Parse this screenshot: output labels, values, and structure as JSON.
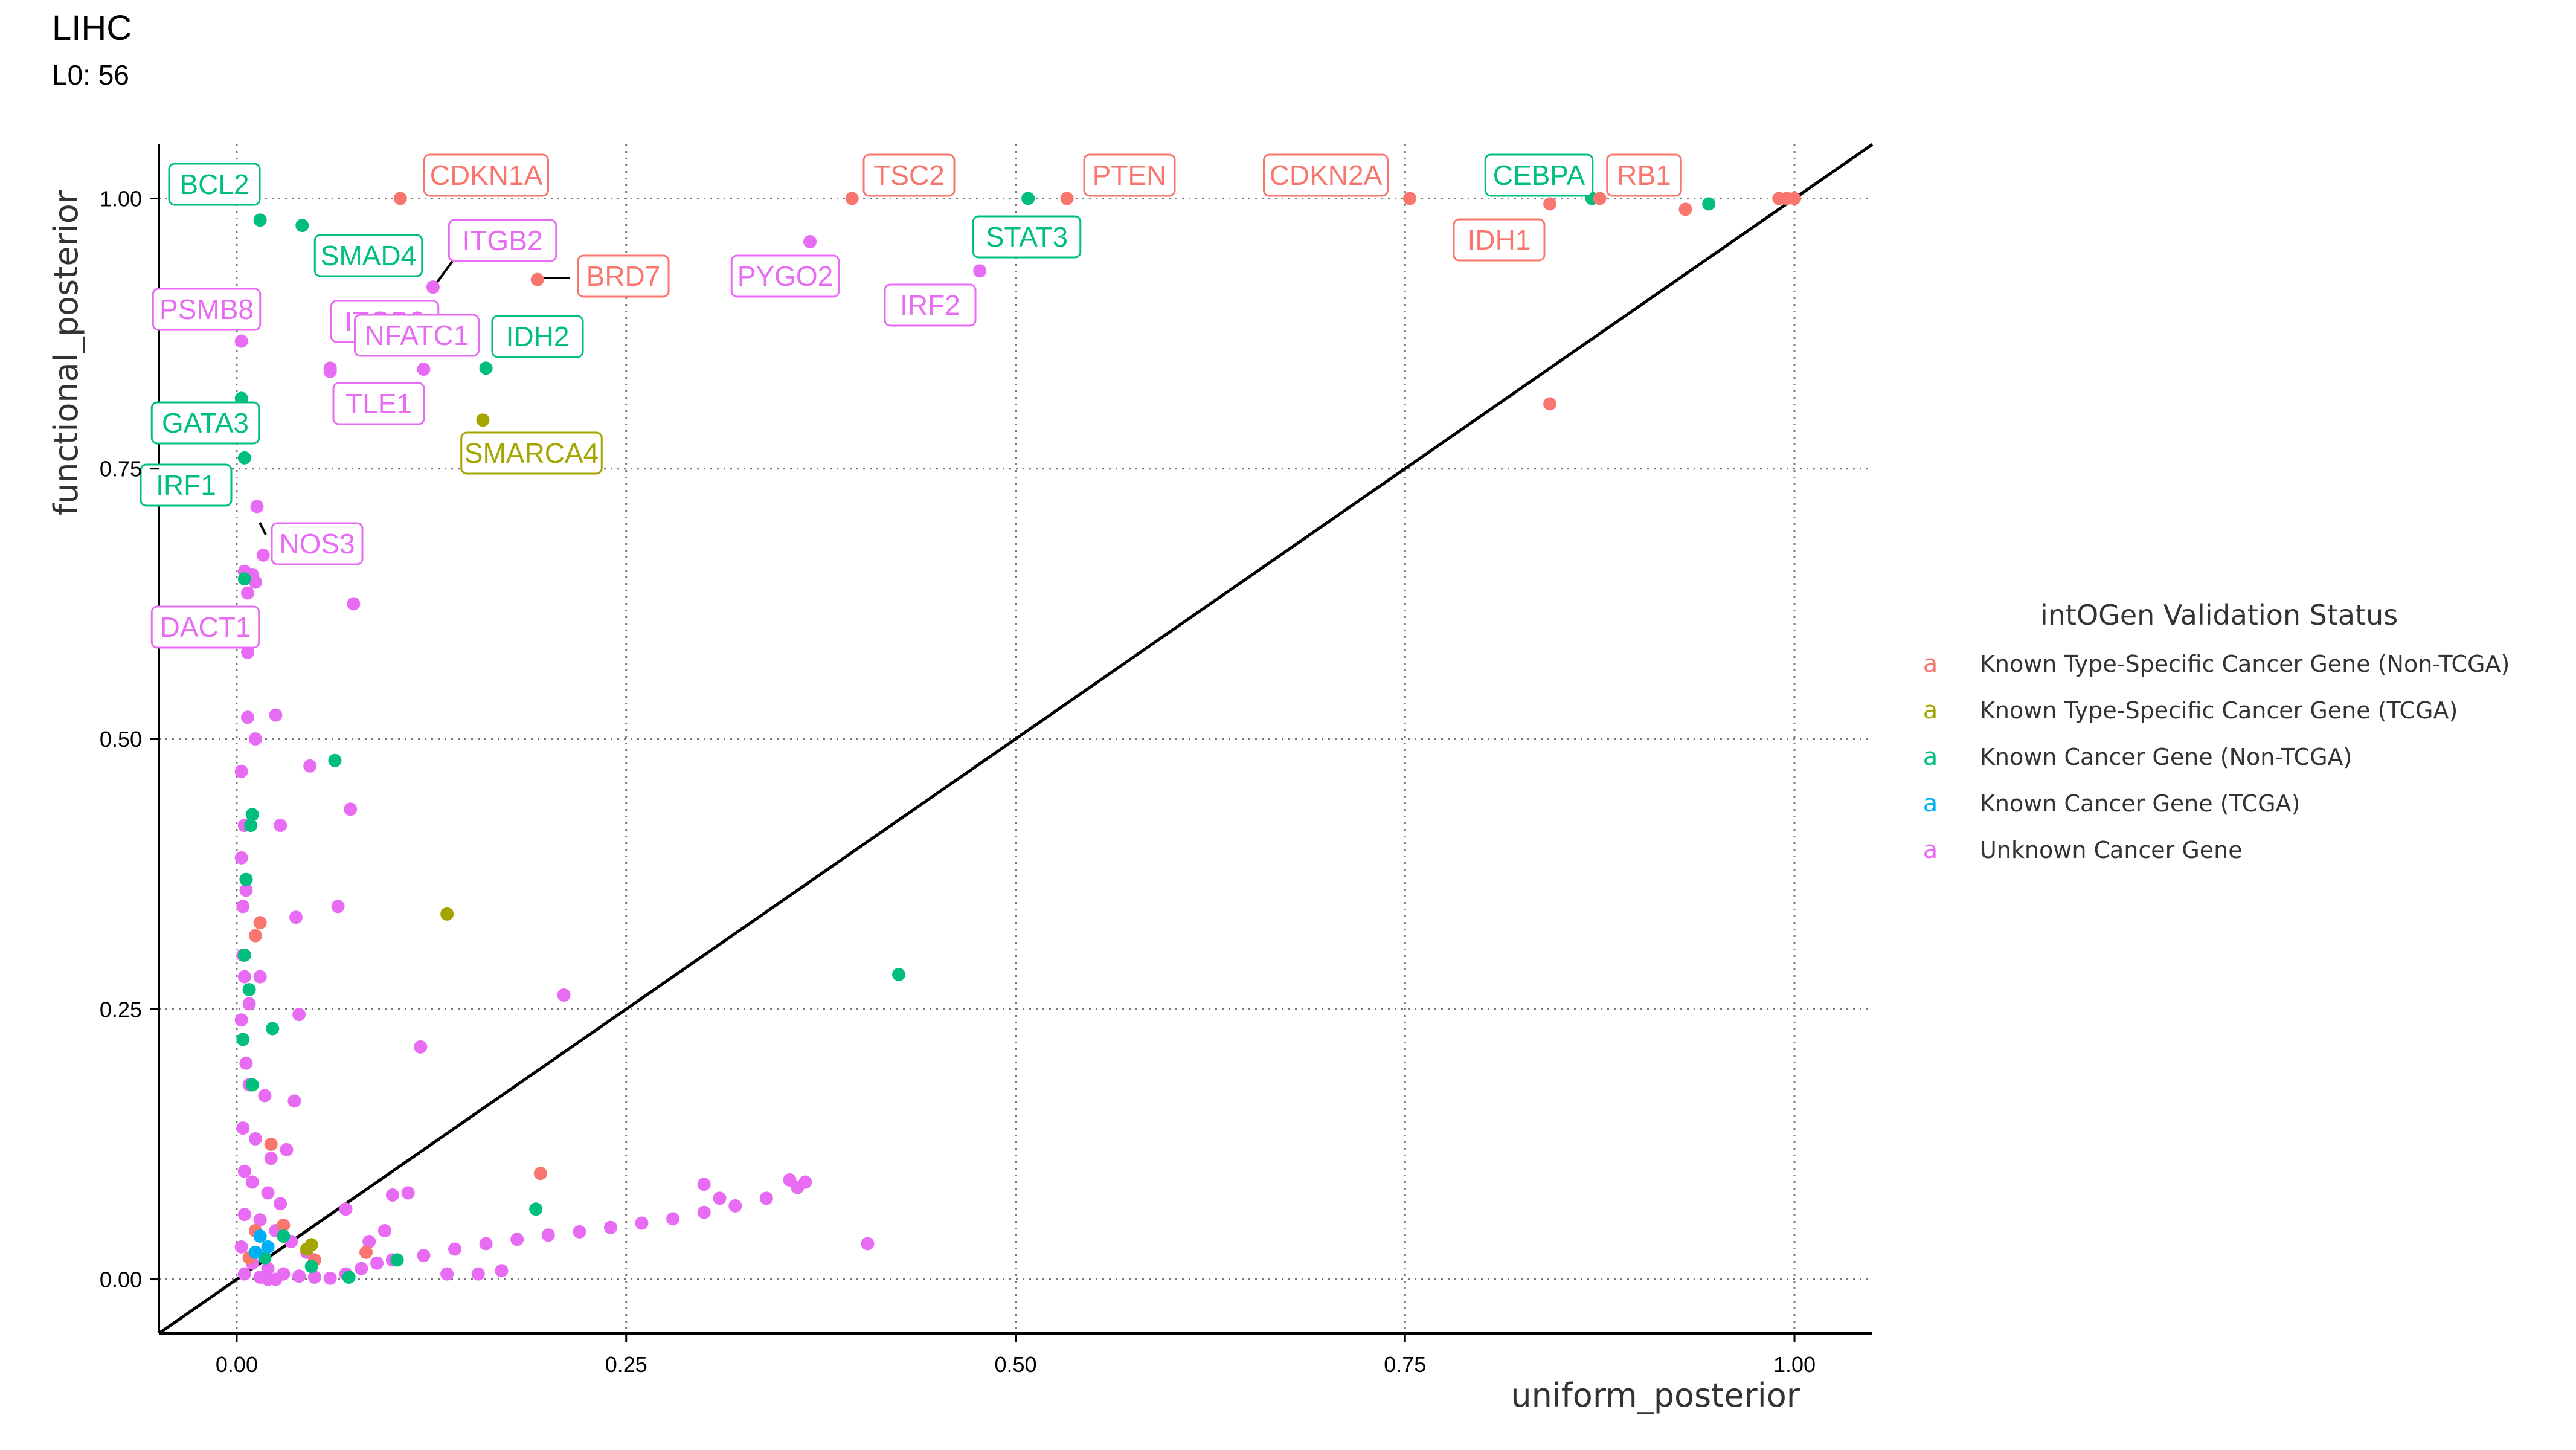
{
  "chart_data": {
    "type": "scatter",
    "title": "LIHC",
    "subtitle": "L0: 56",
    "xlabel": "uniform_posterior",
    "ylabel": "functional_posterior",
    "xlim": [
      -0.05,
      1.05
    ],
    "ylim": [
      -0.05,
      1.05
    ],
    "x_ticks": [
      "0.00",
      "0.25",
      "0.50",
      "0.75",
      "1.00"
    ],
    "y_ticks": [
      "0.00",
      "0.25",
      "0.50",
      "0.75",
      "1.00"
    ],
    "grid": true,
    "reference_line": "y = x",
    "legend": {
      "title": "intOGen Validation Status",
      "key_glyph": "a",
      "placement": "right",
      "entries": [
        {
          "label": "Known Type-Specific Cancer Gene (Non-TCGA)",
          "color": "#F8766D"
        },
        {
          "label": "Known Type-Specific Cancer Gene (TCGA)",
          "color": "#A3A500"
        },
        {
          "label": "Known Cancer Gene (Non-TCGA)",
          "color": "#00BF7D"
        },
        {
          "label": "Known Cancer Gene (TCGA)",
          "color": "#00B0F6"
        },
        {
          "label": "Unknown Cancer Gene",
          "color": "#E76BF3"
        }
      ]
    },
    "labeled_points": [
      {
        "gene": "BCL2",
        "x": 0.015,
        "y": 0.98,
        "status": 2
      },
      {
        "gene": "CDKN1A",
        "x": 0.105,
        "y": 1.0,
        "status": 0
      },
      {
        "gene": "TSC2",
        "x": 0.395,
        "y": 1.0,
        "status": 0
      },
      {
        "gene": "PTEN",
        "x": 0.533,
        "y": 1.0,
        "status": 0
      },
      {
        "gene": "CDKN2A",
        "x": 0.753,
        "y": 1.0,
        "status": 0
      },
      {
        "gene": "CEBPA",
        "x": 0.87,
        "y": 1.0,
        "status": 2
      },
      {
        "gene": "RB1",
        "x": 0.875,
        "y": 1.0,
        "status": 0
      },
      {
        "gene": "IDH1",
        "x": 0.843,
        "y": 0.995,
        "status": 0
      },
      {
        "gene": "SMAD4",
        "x": 0.042,
        "y": 0.975,
        "status": 2
      },
      {
        "gene": "ITGB2",
        "x": 0.126,
        "y": 0.918,
        "status": 4
      },
      {
        "gene": "BRD7",
        "x": 0.193,
        "y": 0.925,
        "status": 0
      },
      {
        "gene": "PYGO2",
        "x": 0.368,
        "y": 0.96,
        "status": 4
      },
      {
        "gene": "STAT3",
        "x": 0.508,
        "y": 1.0,
        "status": 2
      },
      {
        "gene": "IRF2",
        "x": 0.477,
        "y": 0.933,
        "status": 4
      },
      {
        "gene": "PSMB8",
        "x": 0.003,
        "y": 0.868,
        "status": 4
      },
      {
        "gene": "ITGB2",
        "x": 0.06,
        "y": 0.843,
        "status": 4
      },
      {
        "gene": "NFATC1",
        "x": 0.12,
        "y": 0.842,
        "status": 4
      },
      {
        "gene": "IDH2",
        "x": 0.16,
        "y": 0.843,
        "status": 2
      },
      {
        "gene": "TLE1",
        "x": 0.06,
        "y": 0.84,
        "status": 4
      },
      {
        "gene": "SMARCA4",
        "x": 0.158,
        "y": 0.795,
        "status": 1
      },
      {
        "gene": "GATA3",
        "x": 0.003,
        "y": 0.815,
        "status": 2
      },
      {
        "gene": "IRF1",
        "x": 0.005,
        "y": 0.76,
        "status": 2
      },
      {
        "gene": "NOS3",
        "x": 0.013,
        "y": 0.715,
        "status": 4
      },
      {
        "gene": "DACT1",
        "x": 0.005,
        "y": 0.655,
        "status": 4
      }
    ],
    "points": [
      [
        0.99,
        1.0,
        0
      ],
      [
        0.995,
        1.0,
        0
      ],
      [
        1.0,
        1.0,
        0
      ],
      [
        0.93,
        0.99,
        0
      ],
      [
        0.843,
        0.81,
        0
      ],
      [
        0.195,
        0.098,
        0
      ],
      [
        0.015,
        0.33,
        0
      ],
      [
        0.012,
        0.318,
        0
      ],
      [
        0.022,
        0.125,
        0
      ],
      [
        0.03,
        0.05,
        0
      ],
      [
        0.012,
        0.045,
        0
      ],
      [
        0.083,
        0.025,
        0
      ],
      [
        0.05,
        0.018,
        0
      ],
      [
        0.008,
        0.02,
        0
      ],
      [
        0.135,
        0.338,
        1
      ],
      [
        0.048,
        0.032,
        1
      ],
      [
        0.045,
        0.028,
        1
      ],
      [
        0.945,
        0.995,
        2
      ],
      [
        0.425,
        0.282,
        2
      ],
      [
        0.063,
        0.48,
        2
      ],
      [
        0.192,
        0.065,
        2
      ],
      [
        0.023,
        0.232,
        2
      ],
      [
        0.01,
        0.18,
        2
      ],
      [
        0.005,
        0.3,
        2
      ],
      [
        0.008,
        0.268,
        2
      ],
      [
        0.004,
        0.222,
        2
      ],
      [
        0.009,
        0.42,
        2
      ],
      [
        0.01,
        0.43,
        2
      ],
      [
        0.006,
        0.37,
        2
      ],
      [
        0.005,
        0.648,
        2
      ],
      [
        0.103,
        0.018,
        2
      ],
      [
        0.072,
        0.002,
        2
      ],
      [
        0.048,
        0.012,
        2
      ],
      [
        0.018,
        0.02,
        2
      ],
      [
        0.03,
        0.04,
        2
      ],
      [
        0.015,
        0.04,
        3
      ],
      [
        0.02,
        0.03,
        3
      ],
      [
        0.012,
        0.025,
        3
      ],
      [
        0.017,
        0.67,
        4
      ],
      [
        0.01,
        0.652,
        4
      ],
      [
        0.012,
        0.645,
        4
      ],
      [
        0.007,
        0.635,
        4
      ],
      [
        0.075,
        0.625,
        4
      ],
      [
        0.007,
        0.58,
        4
      ],
      [
        0.025,
        0.522,
        4
      ],
      [
        0.007,
        0.52,
        4
      ],
      [
        0.012,
        0.5,
        4
      ],
      [
        0.047,
        0.475,
        4
      ],
      [
        0.003,
        0.47,
        4
      ],
      [
        0.073,
        0.435,
        4
      ],
      [
        0.005,
        0.42,
        4
      ],
      [
        0.028,
        0.42,
        4
      ],
      [
        0.003,
        0.39,
        4
      ],
      [
        0.006,
        0.36,
        4
      ],
      [
        0.004,
        0.345,
        4
      ],
      [
        0.038,
        0.335,
        4
      ],
      [
        0.065,
        0.345,
        4
      ],
      [
        0.004,
        0.3,
        4
      ],
      [
        0.005,
        0.28,
        4
      ],
      [
        0.015,
        0.28,
        4
      ],
      [
        0.008,
        0.255,
        4
      ],
      [
        0.003,
        0.24,
        4
      ],
      [
        0.04,
        0.245,
        4
      ],
      [
        0.006,
        0.2,
        4
      ],
      [
        0.118,
        0.215,
        4
      ],
      [
        0.21,
        0.263,
        4
      ],
      [
        0.008,
        0.18,
        4
      ],
      [
        0.018,
        0.17,
        4
      ],
      [
        0.037,
        0.165,
        4
      ],
      [
        0.004,
        0.14,
        4
      ],
      [
        0.012,
        0.13,
        4
      ],
      [
        0.022,
        0.112,
        4
      ],
      [
        0.032,
        0.12,
        4
      ],
      [
        0.005,
        0.1,
        4
      ],
      [
        0.01,
        0.09,
        4
      ],
      [
        0.02,
        0.08,
        4
      ],
      [
        0.028,
        0.07,
        4
      ],
      [
        0.005,
        0.06,
        4
      ],
      [
        0.015,
        0.055,
        4
      ],
      [
        0.025,
        0.045,
        4
      ],
      [
        0.035,
        0.035,
        4
      ],
      [
        0.045,
        0.025,
        4
      ],
      [
        0.003,
        0.03,
        4
      ],
      [
        0.01,
        0.015,
        4
      ],
      [
        0.02,
        0.01,
        4
      ],
      [
        0.03,
        0.005,
        4
      ],
      [
        0.04,
        0.003,
        4
      ],
      [
        0.05,
        0.002,
        4
      ],
      [
        0.06,
        0.001,
        4
      ],
      [
        0.07,
        0.005,
        4
      ],
      [
        0.08,
        0.01,
        4
      ],
      [
        0.09,
        0.015,
        4
      ],
      [
        0.1,
        0.018,
        4
      ],
      [
        0.12,
        0.022,
        4
      ],
      [
        0.14,
        0.028,
        4
      ],
      [
        0.16,
        0.033,
        4
      ],
      [
        0.18,
        0.037,
        4
      ],
      [
        0.2,
        0.041,
        4
      ],
      [
        0.22,
        0.044,
        4
      ],
      [
        0.24,
        0.048,
        4
      ],
      [
        0.26,
        0.052,
        4
      ],
      [
        0.28,
        0.056,
        4
      ],
      [
        0.3,
        0.062,
        4
      ],
      [
        0.32,
        0.068,
        4
      ],
      [
        0.34,
        0.075,
        4
      ],
      [
        0.36,
        0.085,
        4
      ],
      [
        0.365,
        0.09,
        4
      ],
      [
        0.355,
        0.092,
        4
      ],
      [
        0.3,
        0.088,
        4
      ],
      [
        0.31,
        0.075,
        4
      ],
      [
        0.405,
        0.033,
        4
      ],
      [
        0.135,
        0.005,
        4
      ],
      [
        0.155,
        0.005,
        4
      ],
      [
        0.17,
        0.008,
        4
      ],
      [
        0.095,
        0.045,
        4
      ],
      [
        0.085,
        0.035,
        4
      ],
      [
        0.1,
        0.078,
        4
      ],
      [
        0.11,
        0.08,
        4
      ],
      [
        0.07,
        0.065,
        4
      ],
      [
        0.02,
        0.0,
        4
      ],
      [
        0.005,
        0.005,
        4
      ],
      [
        0.015,
        0.002,
        4
      ],
      [
        0.025,
        0.0,
        4
      ]
    ]
  }
}
